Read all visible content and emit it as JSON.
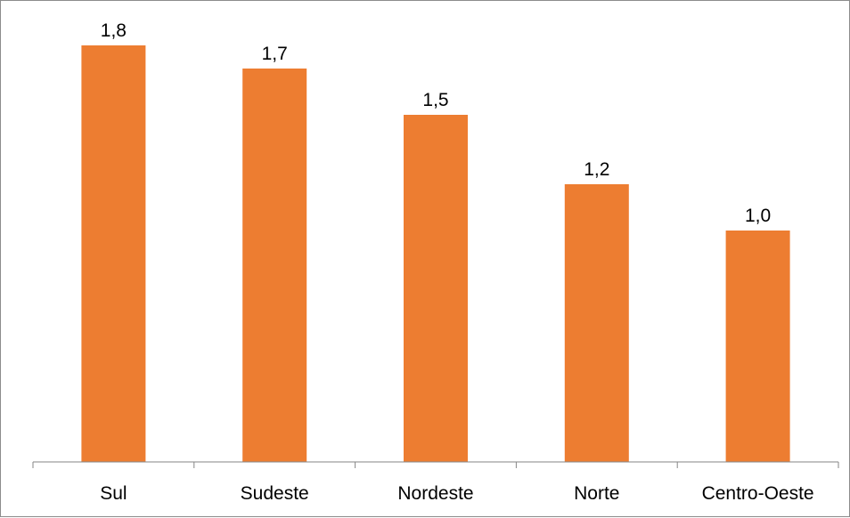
{
  "chart_data": {
    "type": "bar",
    "categories": [
      "Sul",
      "Sudeste",
      "Nordeste",
      "Norte",
      "Centro-Oeste"
    ],
    "values": [
      1.8,
      1.7,
      1.5,
      1.2,
      1.0
    ],
    "data_labels": [
      "1,8",
      "1,7",
      "1,5",
      "1,2",
      "1,0"
    ],
    "title": "",
    "xlabel": "",
    "ylabel": "",
    "ylim": [
      0,
      1.9
    ],
    "grid": false,
    "legend": "none",
    "bar_color": "#ED7D31",
    "axis_color": "#868686"
  }
}
